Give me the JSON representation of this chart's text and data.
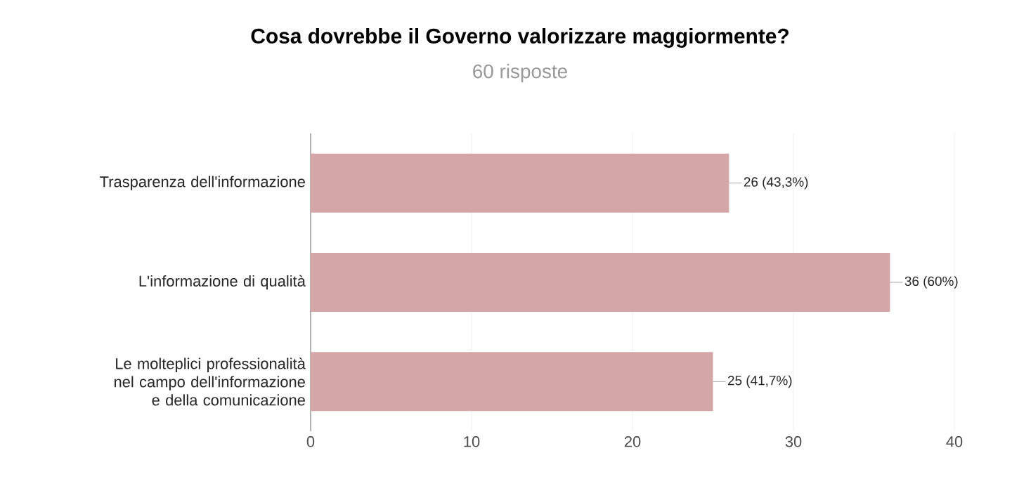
{
  "chart_data": {
    "type": "bar",
    "orientation": "horizontal",
    "title": "Cosa dovrebbe il Governo valorizzare maggiormente?",
    "subtitle": "60 risposte",
    "categories": [
      "Trasparenza dell'informazione",
      "L'informazione di qualità",
      "Le molteplici professionalità nel campo dell'informazione e della comunicazione"
    ],
    "values": [
      26,
      36,
      25
    ],
    "value_labels": [
      "26 (43,3%)",
      "36 (60%)",
      "25 (41,7%)"
    ],
    "color": "#d5a6a8",
    "xlim": [
      0,
      40
    ],
    "xticks": [
      0,
      10,
      20,
      30,
      40
    ],
    "grid": "x"
  }
}
